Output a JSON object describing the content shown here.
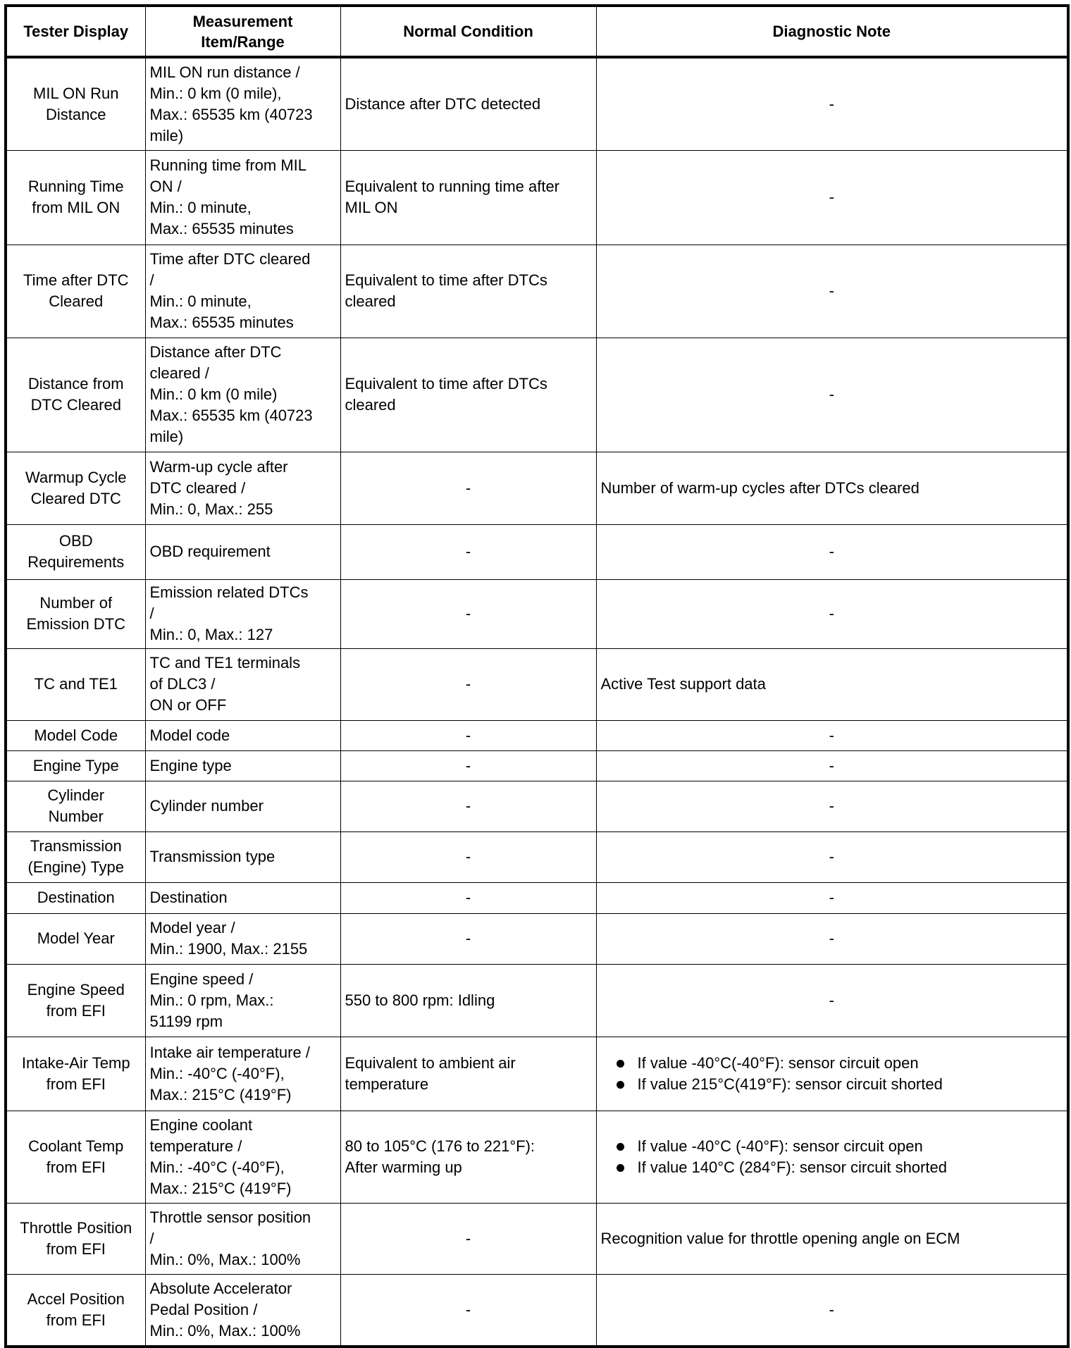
{
  "table": {
    "headers": [
      [
        "Tester Display"
      ],
      [
        "Measurement",
        "Item/Range"
      ],
      [
        "Normal Condition"
      ],
      [
        "Diagnostic Note"
      ]
    ],
    "rows": [
      {
        "display": [
          "MIL ON Run",
          "Distance"
        ],
        "range": [
          "MIL ON run distance /",
          "Min.: 0 km (0 mile),",
          "Max.: 65535 km (40723",
          "mile)"
        ],
        "normal": [
          "Distance after DTC detected"
        ],
        "note": [
          "-"
        ]
      },
      {
        "display": [
          "Running Time",
          "from MIL ON"
        ],
        "range": [
          "Running time from MIL",
          "ON /",
          "Min.: 0 minute,",
          "Max.: 65535 minutes"
        ],
        "normal": [
          "Equivalent to running time after",
          "MIL ON"
        ],
        "note": [
          "-"
        ]
      },
      {
        "display": [
          "Time after DTC",
          "Cleared"
        ],
        "range": [
          "Time after DTC cleared",
          "/",
          "Min.: 0 minute,",
          "Max.: 65535 minutes"
        ],
        "normal": [
          "Equivalent to time after DTCs",
          "cleared"
        ],
        "note": [
          "-"
        ]
      },
      {
        "display": [
          "Distance from",
          "DTC Cleared"
        ],
        "range": [
          "Distance after DTC",
          "cleared /",
          "Min.: 0 km (0 mile)",
          "Max.: 65535 km (40723",
          "mile)"
        ],
        "normal": [
          "Equivalent to time after DTCs",
          "cleared"
        ],
        "note": [
          "-"
        ]
      },
      {
        "display": [
          "Warmup Cycle",
          "Cleared DTC"
        ],
        "range": [
          "Warm-up cycle after",
          "DTC cleared /",
          "Min.: 0, Max.: 255"
        ],
        "normal": [
          "-"
        ],
        "note": [
          "Number of warm-up cycles after DTCs cleared"
        ]
      },
      {
        "display": [
          "OBD",
          "Requirements"
        ],
        "range": [
          "OBD requirement"
        ],
        "normal": [
          "-"
        ],
        "note": [
          "-"
        ]
      },
      {
        "display": [
          "Number of",
          "Emission DTC"
        ],
        "range": [
          "Emission related DTCs",
          "/",
          "Min.: 0, Max.: 127"
        ],
        "normal": [
          "-"
        ],
        "note": [
          "-"
        ]
      },
      {
        "display": [
          "TC and TE1"
        ],
        "range": [
          "TC and TE1 terminals",
          "of DLC3 /",
          "ON or OFF"
        ],
        "normal": [
          "-"
        ],
        "note": [
          "Active Test support data"
        ]
      },
      {
        "display": [
          "Model Code"
        ],
        "range": [
          "Model code"
        ],
        "normal": [
          "-"
        ],
        "note": [
          "-"
        ]
      },
      {
        "display": [
          "Engine Type"
        ],
        "range": [
          "Engine type"
        ],
        "normal": [
          "-"
        ],
        "note": [
          "-"
        ]
      },
      {
        "display": [
          "Cylinder",
          "Number"
        ],
        "range": [
          "Cylinder number"
        ],
        "normal": [
          "-"
        ],
        "note": [
          "-"
        ]
      },
      {
        "display": [
          "Transmission",
          "(Engine) Type"
        ],
        "range": [
          "Transmission type"
        ],
        "normal": [
          "-"
        ],
        "note": [
          "-"
        ]
      },
      {
        "display": [
          "Destination"
        ],
        "range": [
          "Destination"
        ],
        "normal": [
          "-"
        ],
        "note": [
          "-"
        ]
      },
      {
        "display": [
          "Model Year"
        ],
        "range": [
          "Model year /",
          "Min.: 1900, Max.: 2155"
        ],
        "normal": [
          "-"
        ],
        "note": [
          "-"
        ]
      },
      {
        "display": [
          "Engine Speed",
          "from EFI"
        ],
        "range": [
          "Engine speed /",
          "Min.: 0 rpm, Max.:",
          "51199 rpm"
        ],
        "normal": [
          "550 to 800 rpm: Idling"
        ],
        "note": [
          "-"
        ]
      },
      {
        "display": [
          "Intake-Air Temp",
          "from EFI"
        ],
        "range": [
          "Intake air temperature /",
          "Min.: -40°C (-40°F),",
          "Max.: 215°C (419°F)"
        ],
        "normal": [
          "Equivalent to ambient air",
          "temperature"
        ],
        "bullets": [
          "If value -40°C(-40°F): sensor circuit open",
          "If value 215°C(419°F): sensor circuit shorted"
        ]
      },
      {
        "display": [
          "Coolant Temp",
          "from EFI"
        ],
        "range": [
          "Engine coolant",
          "temperature /",
          "Min.: -40°C (-40°F),",
          "Max.: 215°C (419°F)"
        ],
        "normal": [
          "80 to 105°C (176 to 221°F):",
          "After warming up"
        ],
        "bullets": [
          "If value -40°C (-40°F): sensor circuit open",
          "If value 140°C (284°F): sensor circuit shorted"
        ]
      },
      {
        "display": [
          "Throttle Position",
          "from EFI"
        ],
        "range": [
          "Throttle sensor position",
          "/",
          "Min.: 0%, Max.: 100%"
        ],
        "normal": [
          "-"
        ],
        "note": [
          "Recognition value for throttle opening angle on ECM"
        ]
      },
      {
        "display": [
          "Accel Position",
          "from EFI"
        ],
        "range": [
          "Absolute Accelerator",
          "Pedal Position /",
          "Min.: 0%, Max.: 100%"
        ],
        "normal": [
          "-"
        ],
        "note": [
          "-"
        ]
      }
    ]
  }
}
